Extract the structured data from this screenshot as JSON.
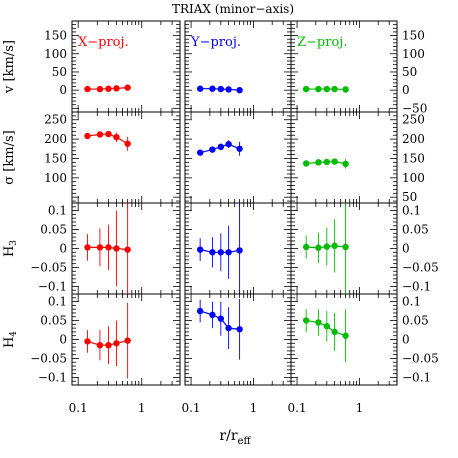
{
  "chart_data": {
    "type": "scatter",
    "title": "TRIAX (minor−axis)",
    "xlabel_main": "r/r",
    "xlabel_sub": "eff",
    "xscale": "log",
    "xlim": [
      0.08,
      4
    ],
    "x_ticks": [
      0.1,
      1
    ],
    "x_tick_labels": [
      "0.1",
      "1"
    ],
    "columns": [
      {
        "label": "X−proj.",
        "color": "#ff0000"
      },
      {
        "label": "Y−proj.",
        "color": "#0000ff"
      },
      {
        "label": "Z−proj.",
        "color": "#00bb00"
      }
    ],
    "rows": [
      {
        "key": "v",
        "ylabel": "v  [km/s]",
        "ylim": [
          -60,
          190
        ],
        "ticks": [
          -50,
          0,
          50,
          100,
          150
        ],
        "left_labels": [
          "0",
          "50",
          "100",
          "150"
        ],
        "right_labels": [
          "−50",
          "0",
          "50",
          "100",
          "150"
        ]
      },
      {
        "key": "sigma",
        "ylabel": "σ  [km/s]",
        "ylim": [
          35,
          270
        ],
        "ticks": [
          50,
          100,
          150,
          200,
          250
        ],
        "left_labels": [
          "100",
          "150",
          "200",
          "250"
        ],
        "right_labels": [
          "50",
          "100",
          "150",
          "200",
          "250"
        ]
      },
      {
        "key": "H3",
        "ylabel_main": "H",
        "ylabel_sub": "3",
        "ylim": [
          -0.12,
          0.12
        ],
        "ticks": [
          -0.1,
          -0.05,
          0,
          0.05,
          0.1
        ],
        "left_labels": [
          "−0.1",
          "−0.05",
          "0",
          "0.05",
          "0.1"
        ],
        "right_labels": [
          "−0.1",
          "−0.05",
          "0",
          "0.05",
          "0.1"
        ]
      },
      {
        "key": "H4",
        "ylabel_main": "H",
        "ylabel_sub": "4",
        "ylim": [
          -0.12,
          0.12
        ],
        "ticks": [
          -0.1,
          -0.05,
          0,
          0.05,
          0.1
        ],
        "left_labels": [
          "−0.1",
          "−0.05",
          "0",
          "0.05",
          "0.1"
        ],
        "right_labels": [
          "−0.1",
          "−0.05",
          "0",
          "0.05",
          "0.1"
        ]
      }
    ],
    "x": [
      0.14,
      0.22,
      0.3,
      0.4,
      0.6
    ],
    "series": [
      {
        "row": "v",
        "col": 0,
        "y": [
          3,
          3,
          4,
          5,
          7
        ],
        "err": [
          3,
          3,
          3,
          4,
          5
        ]
      },
      {
        "row": "v",
        "col": 1,
        "y": [
          4,
          4,
          3,
          2,
          0
        ],
        "err": [
          3,
          3,
          3,
          4,
          6
        ]
      },
      {
        "row": "v",
        "col": 2,
        "y": [
          3,
          3,
          3,
          3,
          2
        ],
        "err": [
          3,
          3,
          3,
          4,
          5
        ]
      },
      {
        "row": "sigma",
        "col": 0,
        "y": [
          208,
          212,
          213,
          205,
          188
        ],
        "err": [
          5,
          6,
          8,
          12,
          18
        ]
      },
      {
        "row": "sigma",
        "col": 1,
        "y": [
          165,
          173,
          180,
          187,
          175
        ],
        "err": [
          5,
          6,
          8,
          10,
          18
        ]
      },
      {
        "row": "sigma",
        "col": 2,
        "y": [
          137,
          140,
          141,
          142,
          136
        ],
        "err": [
          4,
          5,
          6,
          8,
          12
        ]
      },
      {
        "row": "H3",
        "col": 0,
        "y": [
          0.003,
          0.003,
          0.003,
          0,
          -0.003
        ],
        "err": [
          0.035,
          0.05,
          0.06,
          0.1,
          0.14
        ]
      },
      {
        "row": "H3",
        "col": 1,
        "y": [
          -0.003,
          -0.01,
          -0.01,
          -0.01,
          -0.005
        ],
        "err": [
          0.03,
          0.04,
          0.05,
          0.07,
          0.14
        ]
      },
      {
        "row": "H3",
        "col": 2,
        "y": [
          0.004,
          0.002,
          0.005,
          0.007,
          0.004
        ],
        "err": [
          0.03,
          0.04,
          0.05,
          0.07,
          0.14
        ]
      },
      {
        "row": "H4",
        "col": 0,
        "y": [
          -0.005,
          -0.015,
          -0.015,
          -0.01,
          -0.003
        ],
        "err": [
          0.03,
          0.04,
          0.05,
          0.06,
          0.1
        ]
      },
      {
        "row": "H4",
        "col": 1,
        "y": [
          0.075,
          0.065,
          0.055,
          0.03,
          0.027
        ],
        "err": [
          0.03,
          0.035,
          0.045,
          0.055,
          0.08
        ]
      },
      {
        "row": "H4",
        "col": 2,
        "y": [
          0.05,
          0.045,
          0.035,
          0.02,
          0.01
        ],
        "err": [
          0.03,
          0.035,
          0.04,
          0.05,
          0.07
        ]
      }
    ]
  }
}
